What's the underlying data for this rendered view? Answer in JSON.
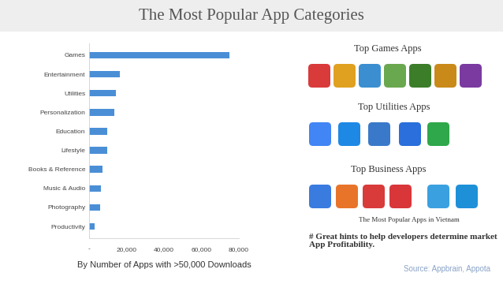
{
  "header": {
    "title": "The Most Popular App Categories"
  },
  "chart_data": {
    "type": "bar",
    "orientation": "horizontal",
    "categories": [
      "Games",
      "Entertainment",
      "Utilities",
      "Personalization",
      "Education",
      "Lifestyle",
      "Books & Reference",
      "Music & Audio",
      "Photography",
      "Productivity"
    ],
    "values": [
      75000,
      16400,
      14300,
      13500,
      9700,
      9700,
      7200,
      6300,
      5900,
      2900
    ],
    "color": "#4a8fd6",
    "xlim": [
      0,
      80000
    ],
    "xticks": [
      {
        "value": 0,
        "label": "-"
      },
      {
        "value": 20000,
        "label": "20,000"
      },
      {
        "value": 40000,
        "label": "40,000"
      },
      {
        "value": 60000,
        "label": "60,000"
      },
      {
        "value": 80000,
        "label": "80,000"
      }
    ],
    "xlabel": "By Number of Apps with >50,000 Downloads",
    "grid": false
  },
  "panels": [
    {
      "title": "Top Games Apps"
    },
    {
      "title": "Top Utilities Apps"
    },
    {
      "title": "Top Business Apps",
      "caption": "The Most Popular Apps in Vietnam"
    }
  ],
  "note": "# Great hints to help developers determine market App Profitability.",
  "source": "Source: Appbrain, Appota"
}
